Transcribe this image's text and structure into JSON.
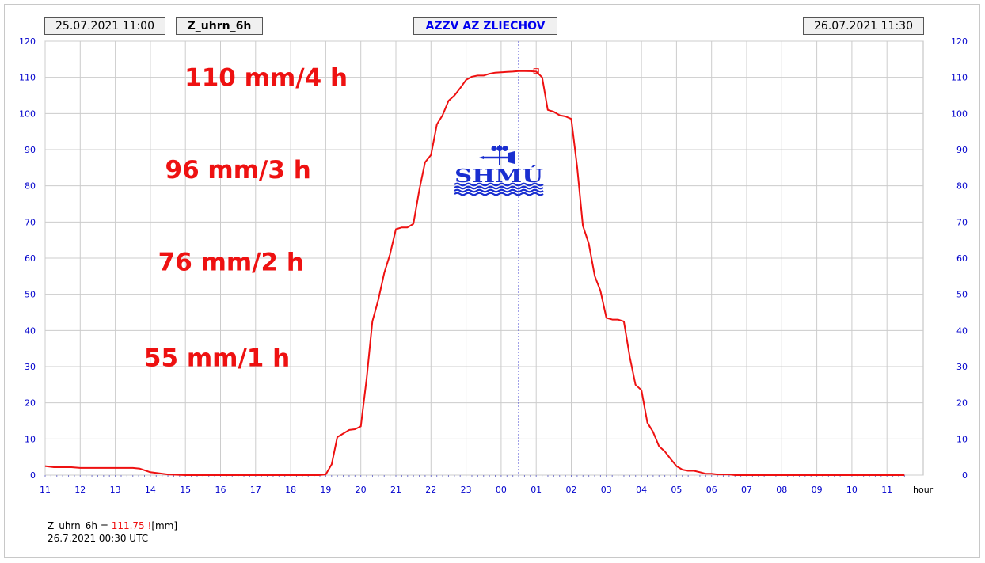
{
  "header": {
    "start_time": "25.07.2021 11:00",
    "parameter": "Z_uhrn_6h",
    "station": "AZZV AZ ZLIECHOV",
    "end_time": "26.07.2021 11:30"
  },
  "logo_text": "SHMÚ",
  "readout": {
    "label": "Z_uhrn_6h = ",
    "value": "111.75 !",
    "unit": "[mm]",
    "time": "26.7.2021 00:30 UTC"
  },
  "colors": {
    "line": "#ee1111",
    "axis_labels": "#0000cc",
    "logo": "#1a2fd0",
    "cursor": "#3333cc"
  },
  "chart_data": {
    "type": "line",
    "ylim": [
      0,
      120
    ],
    "yticks": [
      "0",
      "10",
      "20",
      "30",
      "40",
      "50",
      "60",
      "70",
      "80",
      "90",
      "100",
      "110",
      "120"
    ],
    "xlim": [
      0,
      24.5
    ],
    "xticks": [
      "11",
      "12",
      "13",
      "14",
      "15",
      "16",
      "17",
      "18",
      "19",
      "20",
      "21",
      "22",
      "23",
      "00",
      "01",
      "02",
      "03",
      "04",
      "05",
      "06",
      "07",
      "08",
      "09",
      "10",
      "11"
    ],
    "xunit": "hour",
    "grid": true,
    "cursor_x": 13.5,
    "marker": {
      "x": 13.5,
      "y": 111.75
    },
    "annotations": [
      {
        "text": "110 mm/4 h",
        "x": 6.3,
        "y": 110
      },
      {
        "text": "96 mm/3 h",
        "x": 5.5,
        "y": 84.5
      },
      {
        "text": "76 mm/2 h",
        "x": 5.3,
        "y": 59
      },
      {
        "text": "55 mm/1 h",
        "x": 4.9,
        "y": 32.5
      }
    ],
    "series": [
      {
        "x": [
          0,
          0.25,
          0.5,
          0.75,
          1.0,
          1.5,
          2.0,
          2.25,
          2.5,
          2.7,
          3.0,
          3.5,
          4.0,
          5.0,
          6.0,
          7.0,
          7.5,
          7.8,
          8.0,
          8.17,
          8.33,
          8.5,
          8.67,
          8.83,
          9.0,
          9.17,
          9.33,
          9.5,
          9.67,
          9.83,
          10.0,
          10.17,
          10.33,
          10.5,
          10.67,
          10.83,
          11.0,
          11.17,
          11.33,
          11.5,
          11.67,
          11.83,
          12.0,
          12.17,
          12.33,
          12.5,
          12.67,
          12.83,
          13.0,
          13.17,
          13.33,
          13.5,
          13.67,
          13.83,
          14.0,
          14.17,
          14.33,
          14.5,
          14.67,
          14.83,
          15.0,
          15.17,
          15.33,
          15.5,
          15.67,
          15.83,
          16.0,
          16.17,
          16.33,
          16.5,
          16.67,
          16.83,
          17.0,
          17.17,
          17.33,
          17.5,
          17.67,
          17.83,
          18.0,
          18.17,
          18.33,
          18.5,
          18.67,
          18.83,
          19.0,
          19.17,
          19.33,
          19.5,
          19.67,
          19.83,
          20.0,
          21.0,
          22.0,
          23.0,
          24.0,
          24.5
        ],
        "values": [
          2.5,
          2.2,
          2.2,
          2.2,
          2.0,
          2.0,
          2.0,
          2.0,
          2.0,
          1.8,
          0.8,
          0.2,
          0.0,
          0.0,
          0.0,
          0.0,
          0.0,
          0.0,
          0.2,
          3.0,
          10.5,
          11.5,
          12.5,
          12.7,
          13.5,
          27.0,
          42.5,
          48.5,
          56.0,
          61.0,
          68.0,
          68.5,
          68.5,
          69.5,
          79.0,
          86.5,
          88.5,
          97.0,
          99.5,
          103.5,
          105.0,
          107.0,
          109.3,
          110.2,
          110.5,
          110.5,
          111.0,
          111.3,
          111.4,
          111.5,
          111.6,
          111.75,
          111.75,
          111.7,
          111.6,
          110.0,
          101.0,
          100.5,
          99.5,
          99.2,
          98.5,
          85.0,
          69.0,
          64.0,
          55.0,
          51.0,
          43.5,
          43.0,
          43.0,
          42.5,
          32.5,
          25.0,
          23.5,
          14.5,
          12.0,
          8.0,
          6.5,
          4.5,
          2.5,
          1.5,
          1.2,
          1.2,
          0.8,
          0.4,
          0.4,
          0.2,
          0.2,
          0.2,
          0.0,
          0.0,
          0.0,
          0.0,
          0.0,
          0.0,
          0.0,
          0.0
        ]
      }
    ]
  }
}
